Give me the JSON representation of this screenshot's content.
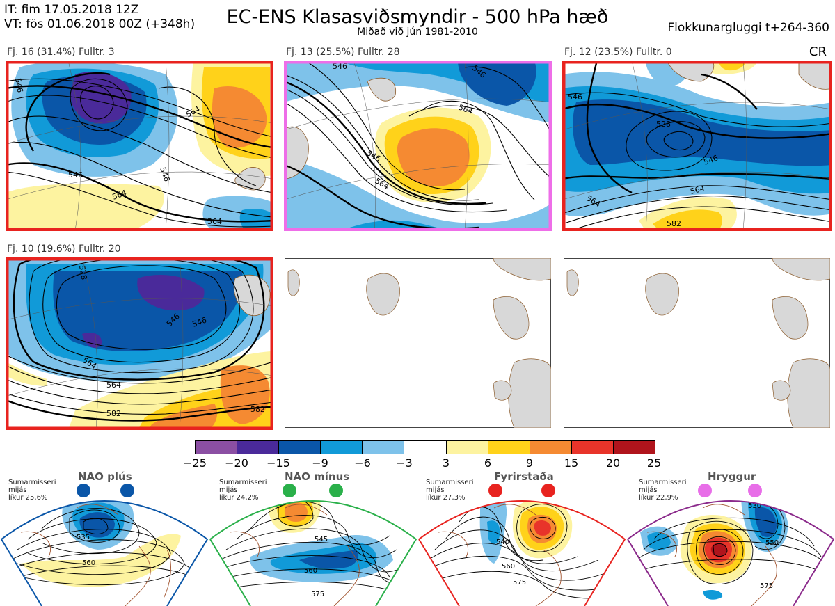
{
  "header": {
    "it_line": "IT: fim 17.05.2018 12Z",
    "vt_line": "VT: fös 01.06.2018 00Z  (+348h)",
    "title": "EC-ENS Klasasviðsmyndir - 500 hPa hæð",
    "subtitle": "Miðað við jún 1981-2010",
    "window": "Flokkunargluggi t+264-360",
    "cr": "CR"
  },
  "panels": [
    {
      "label": "Fj. 16 (31.4%)   Fulltr. 3",
      "border": "#e8231f",
      "contours": [
        "546",
        "546",
        "564",
        "564",
        "564",
        "546"
      ]
    },
    {
      "label": "Fj. 13 (25.5%)   Fulltr. 28",
      "border": "#ee6ee8",
      "contours": [
        "546",
        "546",
        "564",
        "564",
        "546"
      ]
    },
    {
      "label": "Fj. 12 (23.5%)   Fulltr. 0",
      "border": "#e8231f",
      "contours": [
        "546",
        "528",
        "546",
        "564",
        "564",
        "582"
      ]
    },
    {
      "label": "Fj. 10 (19.6%)   Fulltr. 20",
      "border": "#e8231f",
      "contours": [
        "528",
        "546",
        "546",
        "564",
        "564",
        "582",
        "582"
      ]
    }
  ],
  "colorbar": {
    "colors": [
      "#8b4fa3",
      "#4a2a9a",
      "#0a56a8",
      "#119ad8",
      "#7ec2ea",
      "#ffffff",
      "#fdf3a0",
      "#ffd21a",
      "#f58a32",
      "#e8342a",
      "#b0141c"
    ],
    "ticks": [
      "−25",
      "−20",
      "−15",
      "−9",
      "−6",
      "−3",
      "3",
      "6",
      "9",
      "15",
      "20",
      "25"
    ]
  },
  "regimes": [
    {
      "name": "NAO plús",
      "t1": "Sumarmisseri",
      "t2": "mijás",
      "t3": "líkur 25,6%",
      "color": "#0a56a8",
      "contours": [
        "535",
        "560"
      ]
    },
    {
      "name": "NAO mínus",
      "t1": "Sumarmisseri",
      "t2": "mijás",
      "t3": "líkur 24,2%",
      "color": "#2ab04a",
      "contours": [
        "545",
        "560",
        "575"
      ]
    },
    {
      "name": "Fyrirstaða",
      "t1": "Sumarmisseri",
      "t2": "mijás",
      "t3": "líkur 27,3%",
      "color": "#e8231f",
      "contours": [
        "540",
        "560",
        "575"
      ]
    },
    {
      "name": "Hryggur",
      "t1": "Sumarmisseri",
      "t2": "mijás",
      "t3": "líkur 22,9%",
      "color": "#e86ee8",
      "contours": [
        "530",
        "550",
        "575"
      ]
    }
  ]
}
